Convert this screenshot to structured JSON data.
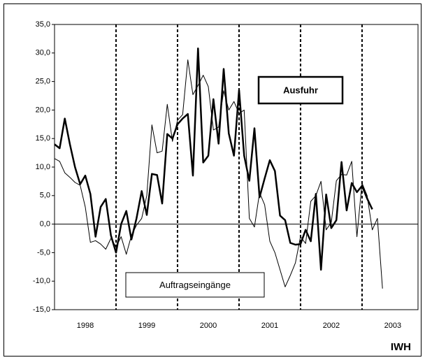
{
  "chart_data": {
    "type": "line",
    "brand": "IWH",
    "x": [
      1998,
      1998.083,
      1998.167,
      1998.25,
      1998.333,
      1998.417,
      1998.5,
      1998.583,
      1998.667,
      1998.75,
      1998.833,
      1998.917,
      1999,
      1999.083,
      1999.167,
      1999.25,
      1999.333,
      1999.417,
      1999.5,
      1999.583,
      1999.667,
      1999.75,
      1999.833,
      1999.917,
      2000,
      2000.083,
      2000.167,
      2000.25,
      2000.333,
      2000.417,
      2000.5,
      2000.583,
      2000.667,
      2000.75,
      2000.833,
      2000.917,
      2001,
      2001.083,
      2001.167,
      2001.25,
      2001.333,
      2001.417,
      2001.5,
      2001.583,
      2001.667,
      2001.75,
      2001.833,
      2001.917,
      2002,
      2002.083,
      2002.167,
      2002.25,
      2002.333,
      2002.417,
      2002.5,
      2002.583,
      2002.667,
      2002.75,
      2002.833,
      2002.917,
      2003,
      2003.083,
      2003.167,
      2003.25,
      2003.333
    ],
    "series": [
      {
        "name": "Ausfuhr",
        "color": "#000000",
        "width": 2.5,
        "values": [
          14.0,
          13.3,
          18.5,
          14.0,
          10.0,
          7.0,
          8.5,
          5.3,
          -2.2,
          3.0,
          4.4,
          -2.0,
          -5.0,
          0.0,
          2.3,
          -2.7,
          1.0,
          5.8,
          1.6,
          8.8,
          8.6,
          3.6,
          15.8,
          15.0,
          17.5,
          18.5,
          19.3,
          8.5,
          30.8,
          10.8,
          12.0,
          21.9,
          14.1,
          27.2,
          15.9,
          12.0,
          23.5,
          12.0,
          7.6,
          16.8,
          4.7,
          8.0,
          11.2,
          9.3,
          1.5,
          0.7,
          -3.3,
          -3.6,
          -3.5,
          -1.0,
          -3.0,
          5.3,
          -8.0,
          5.2,
          -0.7,
          0.7,
          10.9,
          2.4,
          7.2,
          5.6,
          6.7,
          4.5,
          2.6,
          null,
          null
        ]
      },
      {
        "name": "Auftragseingänge",
        "color": "#000000",
        "width": 1,
        "values": [
          11.5,
          11.0,
          9.0,
          8.2,
          7.3,
          6.8,
          3.0,
          -3.2,
          -2.9,
          -3.5,
          -4.4,
          -2.5,
          -4.0,
          -2.2,
          -5.3,
          -2.0,
          -0.2,
          1.0,
          5.0,
          17.4,
          12.5,
          12.8,
          21.0,
          14.5,
          18.2,
          19.2,
          28.8,
          22.7,
          24.3,
          26.1,
          24.1,
          16.5,
          17.0,
          23.4,
          20.0,
          21.5,
          19.4,
          20.0,
          1.0,
          -0.5,
          5.5,
          3.4,
          -3.0,
          -5.0,
          -8.0,
          -11.0,
          -9.0,
          -6.8,
          -2.2,
          -3.4,
          4.0,
          5.0,
          7.5,
          -1.0,
          0.3,
          7.6,
          8.7,
          8.6,
          11.0,
          -2.2,
          7.2,
          5.0,
          -1.0,
          1.0,
          -11.3
        ]
      }
    ],
    "xlim": [
      1998,
      2003.91
    ],
    "xticks": [
      {
        "value": 1998.5,
        "label": "1998"
      },
      {
        "value": 1999.5,
        "label": "1999"
      },
      {
        "value": 2000.5,
        "label": "2000"
      },
      {
        "value": 2001.5,
        "label": "2001"
      },
      {
        "value": 2002.5,
        "label": "2002"
      },
      {
        "value": 2003.5,
        "label": "2003"
      }
    ],
    "year_lines": [
      1999,
      2000,
      2001,
      2002,
      2003
    ],
    "ylim": [
      -15,
      35
    ],
    "yticks": [
      {
        "value": -15,
        "label": "-15,0"
      },
      {
        "value": -10,
        "label": "-10,0"
      },
      {
        "value": -5,
        "label": "-5,0"
      },
      {
        "value": 0,
        "label": "0,0"
      },
      {
        "value": 5,
        "label": "5,0"
      },
      {
        "value": 10,
        "label": "10,0"
      },
      {
        "value": 15,
        "label": "15,0"
      },
      {
        "value": 20,
        "label": "20,0"
      },
      {
        "value": 25,
        "label": "25,0"
      },
      {
        "value": 30,
        "label": "30,0"
      },
      {
        "value": 35,
        "label": "35,0"
      }
    ]
  }
}
